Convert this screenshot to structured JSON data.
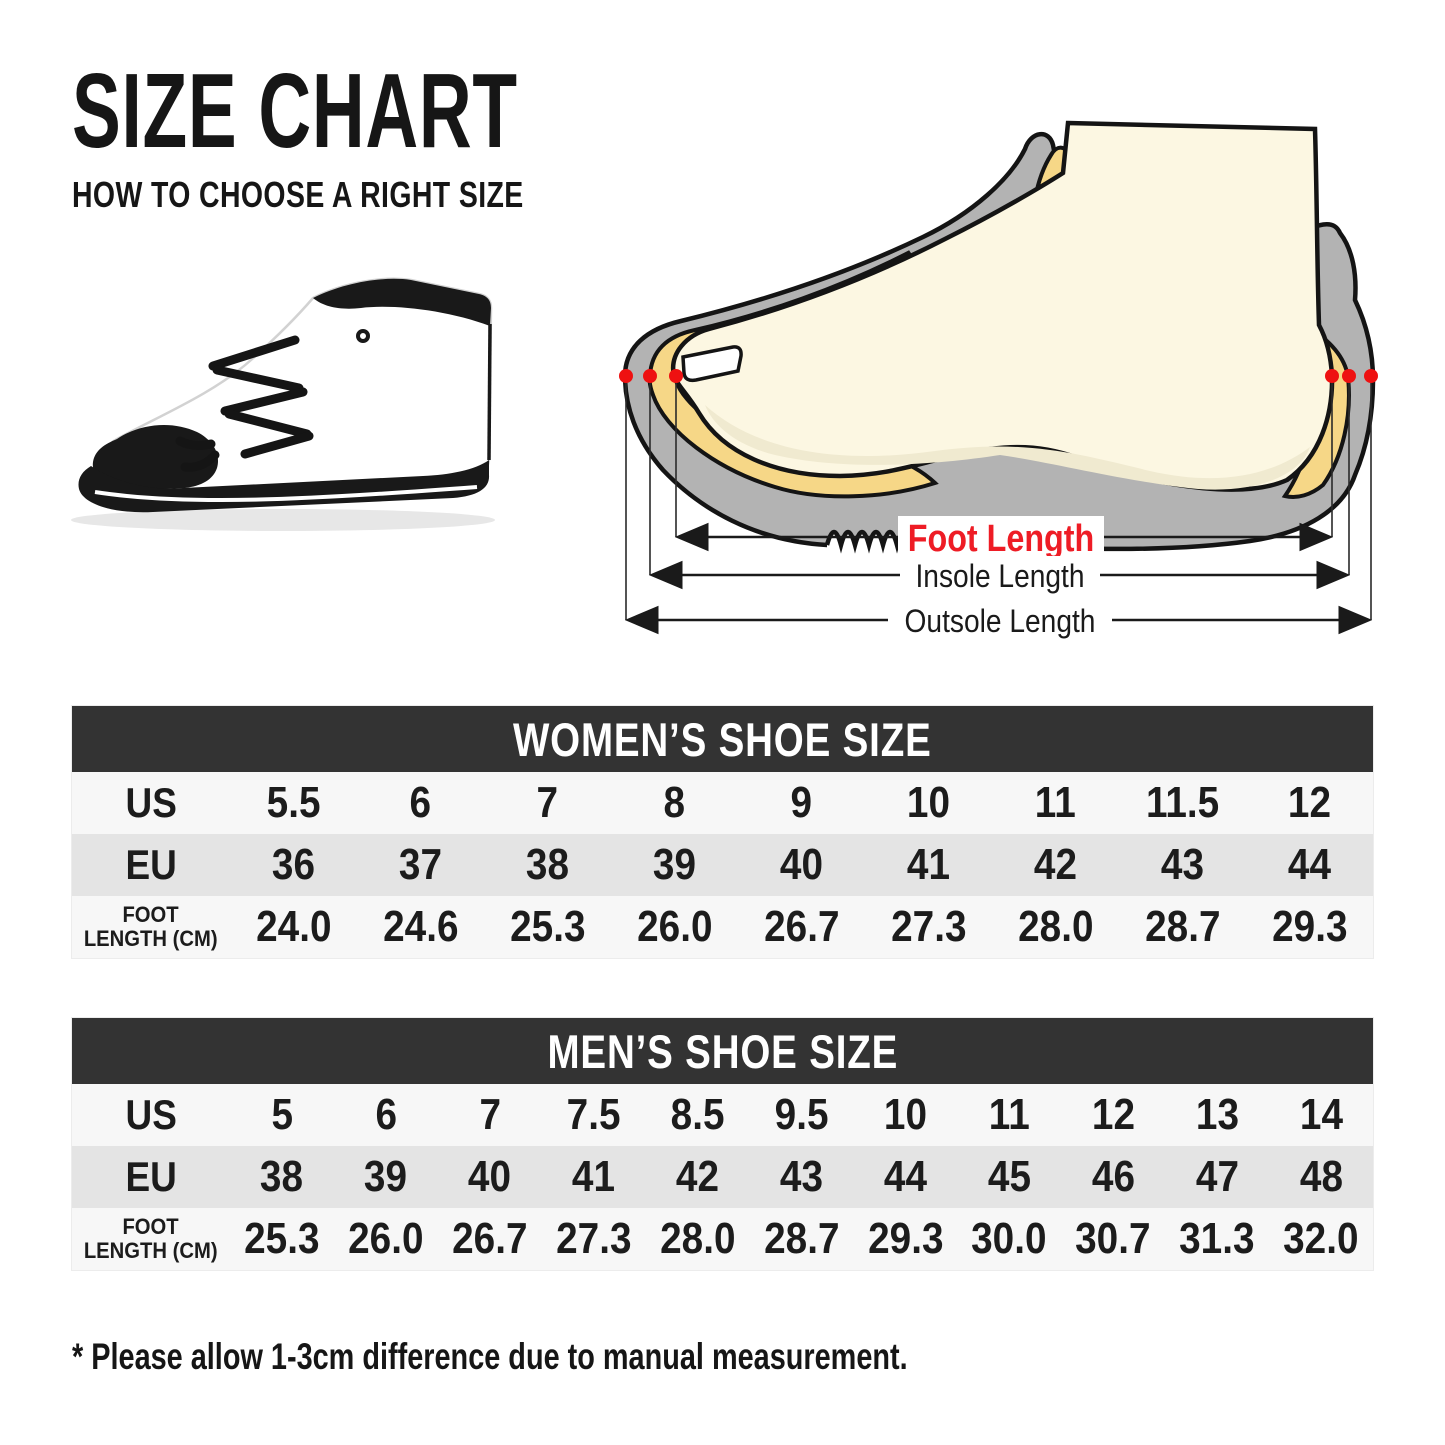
{
  "page": {
    "title": "SIZE CHART",
    "subtitle": "HOW TO CHOOSE A RIGHT SIZE",
    "footnote": "* Please allow 1-3cm difference due to manual measurement."
  },
  "shoe_image": {
    "description": "white high-top canvas sneaker with black toe cap, black laces and black sole, side view facing left"
  },
  "diagram": {
    "description": "cross-section of a foot inside a shoe with measurement markers",
    "labels": {
      "foot_length": "Foot Length",
      "insole_length": "Insole Length",
      "outsole_length": "Outsole Length"
    },
    "colors": {
      "foot_length_label": "#ee1c25",
      "marker_dot": "#ee1111",
      "shoe_gray": "#b3b3b3",
      "insole_yellow": "#f6d787",
      "foot_cream": "#fcf7e2",
      "outline": "#141414"
    }
  },
  "tables": {
    "women": {
      "title": "WOMEN’S SHOE SIZE",
      "rows": [
        {
          "key": "us",
          "label_lines": [
            "US"
          ],
          "values": [
            "5.5",
            "6",
            "7",
            "8",
            "9",
            "10",
            "11",
            "11.5",
            "12"
          ]
        },
        {
          "key": "eu",
          "label_lines": [
            "EU"
          ],
          "values": [
            "36",
            "37",
            "38",
            "39",
            "40",
            "41",
            "42",
            "43",
            "44"
          ]
        },
        {
          "key": "foot-length-cm",
          "label_lines": [
            "FOOT",
            "LENGTH (CM)"
          ],
          "values": [
            "24.0",
            "24.6",
            "25.3",
            "26.0",
            "26.7",
            "27.3",
            "28.0",
            "28.7",
            "29.3"
          ]
        }
      ]
    },
    "men": {
      "title": "MEN’S SHOE SIZE",
      "rows": [
        {
          "key": "us",
          "label_lines": [
            "US"
          ],
          "values": [
            "5",
            "6",
            "7",
            "7.5",
            "8.5",
            "9.5",
            "10",
            "11",
            "12",
            "13",
            "14"
          ]
        },
        {
          "key": "eu",
          "label_lines": [
            "EU"
          ],
          "values": [
            "38",
            "39",
            "40",
            "41",
            "42",
            "43",
            "44",
            "45",
            "46",
            "47",
            "48"
          ]
        },
        {
          "key": "foot-length-cm",
          "label_lines": [
            "FOOT",
            "LENGTH (CM)"
          ],
          "values": [
            "25.3",
            "26.0",
            "26.7",
            "27.3",
            "28.0",
            "28.7",
            "29.3",
            "30.0",
            "30.7",
            "31.3",
            "32.0"
          ]
        }
      ]
    }
  },
  "chart_data": [
    {
      "type": "table",
      "title": "WOMEN’S SHOE SIZE",
      "row_headers": [
        "US",
        "EU",
        "FOOT LENGTH (CM)"
      ],
      "rows": {
        "US": [
          "5.5",
          "6",
          "7",
          "8",
          "9",
          "10",
          "11",
          "11.5",
          "12"
        ],
        "EU": [
          "36",
          "37",
          "38",
          "39",
          "40",
          "41",
          "42",
          "43",
          "44"
        ],
        "FOOT LENGTH (CM)": [
          "24.0",
          "24.6",
          "25.3",
          "26.0",
          "26.7",
          "27.3",
          "28.0",
          "28.7",
          "29.3"
        ]
      }
    },
    {
      "type": "table",
      "title": "MEN’S SHOE SIZE",
      "row_headers": [
        "US",
        "EU",
        "FOOT LENGTH (CM)"
      ],
      "rows": {
        "US": [
          "5",
          "6",
          "7",
          "7.5",
          "8.5",
          "9.5",
          "10",
          "11",
          "12",
          "13",
          "14"
        ],
        "EU": [
          "38",
          "39",
          "40",
          "41",
          "42",
          "43",
          "44",
          "45",
          "46",
          "47",
          "48"
        ],
        "FOOT LENGTH (CM)": [
          "25.3",
          "26.0",
          "26.7",
          "27.3",
          "28.0",
          "28.7",
          "29.3",
          "30.0",
          "30.7",
          "31.3",
          "32.0"
        ]
      }
    }
  ]
}
